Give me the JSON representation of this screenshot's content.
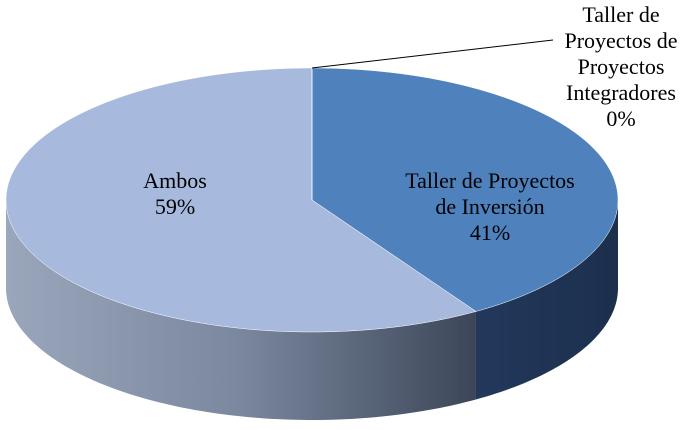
{
  "chart_data": {
    "type": "pie3d",
    "labels": [
      "Taller de Proyectos de Inversión",
      "Ambos",
      "Taller de Proyectos de Proyectos Integradores"
    ],
    "values": [
      41,
      59,
      0
    ],
    "value_labels": [
      "41%",
      "59%",
      "0%"
    ],
    "colors": [
      "#4f81bd",
      "#a7b9dd",
      "#5b7fb5"
    ]
  }
}
